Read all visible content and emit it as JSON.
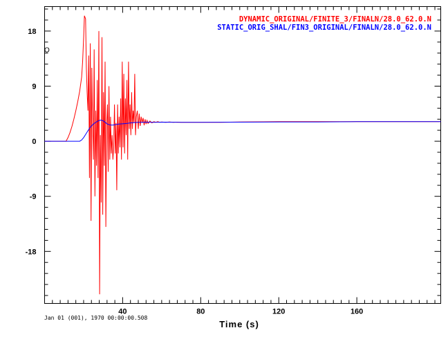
{
  "chart_data": {
    "type": "line",
    "title": "",
    "xlabel": "Time (s)",
    "ylabel": "",
    "xlim": [
      0,
      203
    ],
    "ylim": [
      -26.5,
      22
    ],
    "xticks": [
      40,
      80,
      120,
      160
    ],
    "yticks": [
      18,
      9,
      0,
      -9,
      -18
    ],
    "xtick_labels": [
      "40",
      "80",
      "120",
      "160"
    ],
    "ytick_labels": [
      "18",
      "9",
      "0",
      "-9",
      "-18"
    ],
    "grid": false,
    "legend_position": "top-right",
    "date_label": "Jan 01 (001), 1970 00:00:00.508",
    "marker_label": "O",
    "marker_point": {
      "x": 0.5,
      "y": 15
    },
    "series": [
      {
        "name": "DYNAMIC_ORIGINAL/FINITE_3/FINALN/28.0_62.0.N",
        "color": "#ff0000",
        "x": [
          0,
          11,
          12,
          13,
          14,
          15,
          16,
          17,
          18,
          19,
          19.5,
          20,
          20.4,
          21,
          21.4,
          21.8,
          22.2,
          22.6,
          23,
          23.4,
          23.8,
          24.2,
          24.6,
          25,
          25.4,
          25.8,
          26.2,
          26.6,
          27,
          27.4,
          27.8,
          28.2,
          28.6,
          29,
          29.4,
          29.8,
          30.2,
          30.6,
          31,
          31.4,
          31.8,
          32.2,
          32.6,
          33,
          33.4,
          33.8,
          34.2,
          34.6,
          35,
          35.4,
          35.8,
          36.2,
          36.6,
          37,
          37.4,
          37.8,
          38.2,
          38.6,
          39,
          39.4,
          39.8,
          40.2,
          40.6,
          41,
          41.4,
          41.8,
          42.2,
          42.6,
          43,
          43.4,
          43.8,
          44.2,
          44.6,
          45,
          45.4,
          45.8,
          46.2,
          46.6,
          47,
          47.5,
          48,
          48.5,
          49,
          49.5,
          50,
          50.5,
          51,
          51.5,
          52,
          52.5,
          53,
          54,
          55,
          56,
          57,
          58,
          59,
          60,
          62,
          64,
          66,
          68,
          70,
          75,
          80,
          90,
          100,
          120,
          140,
          160,
          180,
          203
        ],
        "y": [
          0,
          0,
          0.6,
          1.4,
          2.4,
          3.6,
          5,
          6.5,
          8.2,
          10.5,
          13,
          17,
          20.5,
          20,
          12,
          8,
          5,
          14,
          -6,
          16,
          -13,
          12,
          3,
          -3,
          15,
          -9,
          5,
          -4,
          10,
          -6,
          18,
          -25,
          1,
          -10,
          17,
          -12,
          8,
          -4,
          13,
          -14,
          3,
          6,
          -5,
          9,
          -3,
          4,
          -2,
          1,
          -3,
          -1,
          6,
          -2,
          3,
          -8,
          6,
          -2,
          4,
          -1,
          7,
          -3,
          13,
          -1,
          11,
          -2,
          7,
          1,
          10,
          -3,
          13,
          2,
          6,
          1,
          8,
          2,
          5,
          3,
          11,
          1,
          4,
          5,
          2,
          4.5,
          2.5,
          4,
          3,
          3.8,
          2.6,
          3.6,
          2.8,
          3.4,
          2.9,
          3.3,
          3,
          3.2,
          3.1,
          3.2,
          3.1,
          3.15,
          3.1,
          3.15,
          3.1,
          3.12,
          3.1,
          3.1,
          3.1,
          3.1,
          3.15,
          3.2,
          3.2,
          3.2,
          3.2,
          3.2
        ]
      },
      {
        "name": "STATIC_ORIG_SHAL/FIN3_ORIGINAL/FINALN/28.0_62.0.N",
        "color": "#0000ff",
        "x": [
          0,
          18,
          19,
          20,
          21,
          22,
          23,
          24,
          25,
          26,
          27,
          28,
          29,
          30,
          31,
          32,
          33,
          34,
          35,
          36,
          37,
          38,
          40,
          42,
          44,
          46,
          48,
          50,
          52,
          56,
          60,
          70,
          80,
          100,
          120,
          140,
          160,
          180,
          203
        ],
        "y": [
          0,
          0,
          0.2,
          0.6,
          1.1,
          1.6,
          2.1,
          2.5,
          2.8,
          3.05,
          3.25,
          3.4,
          3.45,
          3.35,
          3.1,
          2.85,
          2.7,
          2.65,
          2.65,
          2.7,
          2.75,
          2.8,
          2.85,
          2.9,
          3.0,
          3.05,
          3.1,
          3.1,
          3.12,
          3.1,
          3.12,
          3.1,
          3.1,
          3.12,
          3.15,
          3.15,
          3.2,
          3.2,
          3.2
        ]
      }
    ]
  }
}
